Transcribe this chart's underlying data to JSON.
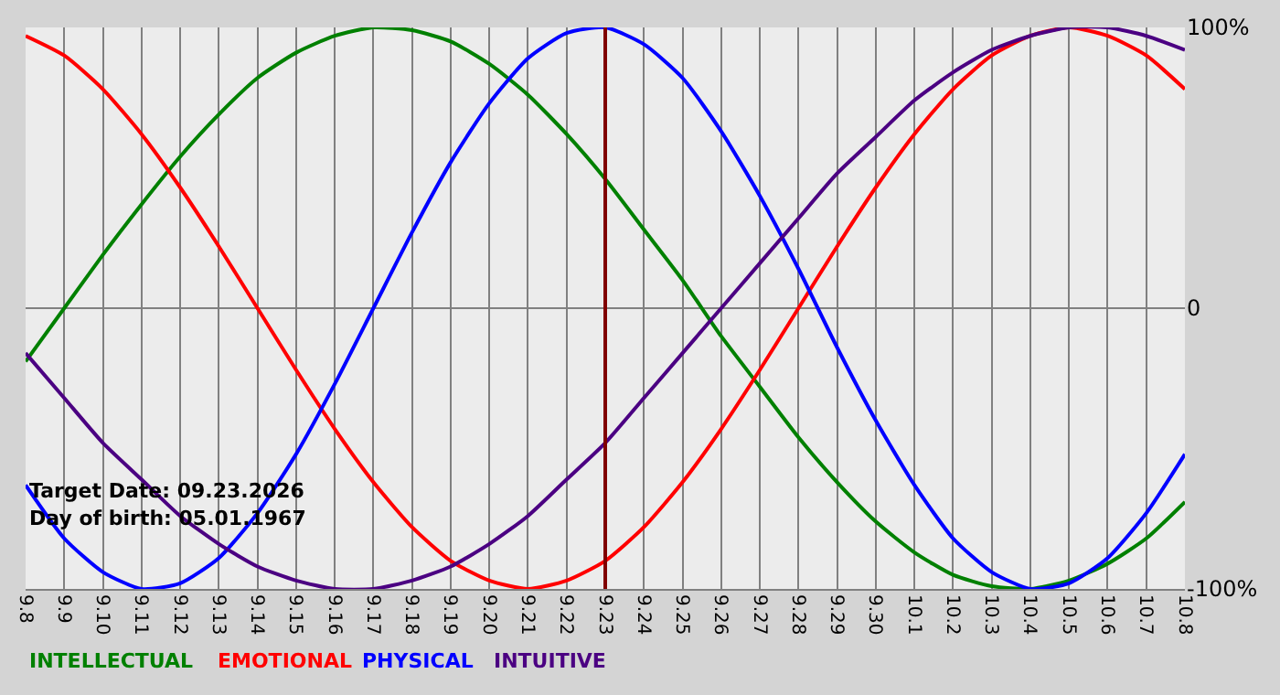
{
  "chart_data": {
    "type": "line",
    "categories": [
      "9.8",
      "9.9",
      "9.10",
      "9.11",
      "9.12",
      "9.13",
      "9.14",
      "9.15",
      "9.16",
      "9.17",
      "9.18",
      "9.19",
      "9.20",
      "9.21",
      "9.22",
      "9.23",
      "9.24",
      "9.25",
      "9.26",
      "9.27",
      "9.28",
      "9.29",
      "9.30",
      "10.1",
      "10.2",
      "10.3",
      "10.4",
      "10.5",
      "10.6",
      "10.7",
      "10.8"
    ],
    "series": [
      {
        "name": "INTELLECTUAL",
        "color": "#008000",
        "values": [
          -19,
          0,
          19,
          37,
          54,
          69,
          82,
          91,
          97,
          100,
          99,
          95,
          87,
          76,
          62,
          46,
          28,
          10,
          -10,
          -28,
          -46,
          -62,
          -76,
          -87,
          -95,
          -99,
          -100,
          -97,
          -91,
          -82,
          -69
        ]
      },
      {
        "name": "EMOTIONAL",
        "color": "#ff0000",
        "values": [
          97,
          90,
          78,
          62,
          43,
          22,
          0,
          -22,
          -43,
          -62,
          -78,
          -90,
          -97,
          -100,
          -97,
          -90,
          -78,
          -62,
          -43,
          -22,
          0,
          22,
          43,
          62,
          78,
          90,
          97,
          100,
          97,
          90,
          78
        ]
      },
      {
        "name": "PHYSICAL",
        "color": "#0000ff",
        "values": [
          -63,
          -82,
          -94,
          -100,
          -98,
          -89,
          -73,
          -52,
          -27,
          0,
          27,
          52,
          73,
          89,
          98,
          100,
          94,
          82,
          63,
          40,
          14,
          -14,
          -40,
          -63,
          -82,
          -94,
          -100,
          -98,
          -89,
          -73,
          -52
        ]
      },
      {
        "name": "INTUITIVE",
        "color": "#4b0082",
        "values": [
          -16,
          -32,
          -48,
          -61,
          -74,
          -84,
          -92,
          -97,
          -100,
          -100,
          -97,
          -92,
          -84,
          -74,
          -61,
          -48,
          -32,
          -16,
          0,
          16,
          32,
          48,
          61,
          74,
          84,
          92,
          97,
          100,
          100,
          97,
          92
        ]
      }
    ],
    "ylim": [
      -100,
      100
    ],
    "yticks": [
      {
        "value": -100,
        "label": "-100%"
      },
      0,
      {
        "value": 100,
        "label": "100%"
      }
    ],
    "grid": true,
    "marker": "none",
    "line_style": "solid",
    "ref_lines": [
      {
        "axis": "x",
        "value": "9.23",
        "color": "#800000"
      }
    ],
    "annotations": [
      "Target Date: 09.23.2026",
      "Day of birth: 05.01.1967"
    ]
  }
}
